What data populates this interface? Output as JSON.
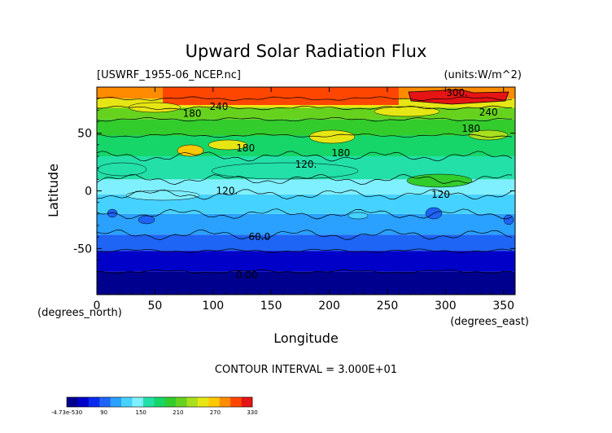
{
  "chart_data": {
    "type": "heatmap",
    "title": "Upward Solar Radiation Flux",
    "file_label": "[USWRF_1955-06_NCEP.nc]",
    "units_label": "(units:W/m^2)",
    "xlabel": "Longitude",
    "ylabel": "Latitude",
    "x_unit_label": "(degrees_east)",
    "y_unit_label": "(degrees_north)",
    "xlim": [
      0,
      360
    ],
    "ylim": [
      -90,
      90
    ],
    "x_ticks": [
      0,
      50,
      100,
      150,
      200,
      250,
      300,
      350
    ],
    "y_ticks": [
      -50,
      0,
      50
    ],
    "contour_interval_label": "CONTOUR INTERVAL = 3.000E+01",
    "colorbar": {
      "tick_labels": [
        "-4.73e-530",
        "90",
        "150",
        "210",
        "270",
        "330"
      ],
      "colors": [
        "#00008f",
        "#0000c8",
        "#0a2af0",
        "#1e64f5",
        "#2aa0ff",
        "#46d2ff",
        "#7ff0ff",
        "#22e0a8",
        "#16d66a",
        "#33cc2d",
        "#66d21e",
        "#a8e01e",
        "#e6e614",
        "#ffc800",
        "#ff8c00",
        "#ff4600",
        "#e61414"
      ]
    },
    "contour_labels": [
      {
        "text": "300.",
        "lon": 310,
        "lat": 85
      },
      {
        "text": "240",
        "lon": 105,
        "lat": 73
      },
      {
        "text": "180",
        "lon": 82,
        "lat": 67
      },
      {
        "text": "240",
        "lon": 337,
        "lat": 68
      },
      {
        "text": "180",
        "lon": 322,
        "lat": 54
      },
      {
        "text": "180",
        "lon": 128,
        "lat": 37
      },
      {
        "text": "180",
        "lon": 210,
        "lat": 33
      },
      {
        "text": "120.",
        "lon": 180,
        "lat": 23
      },
      {
        "text": "120.",
        "lon": 112,
        "lat": 0
      },
      {
        "text": "120",
        "lon": 296,
        "lat": -3
      },
      {
        "text": "60.0",
        "lon": 140,
        "lat": -40
      },
      {
        "text": "0.00",
        "lon": 129,
        "lat": -73
      }
    ],
    "latitude_bands": [
      {
        "from": -90,
        "to": -70,
        "value": 0
      },
      {
        "from": -70,
        "to": -52,
        "value": 30
      },
      {
        "from": -52,
        "to": -38,
        "value": 55
      },
      {
        "from": -38,
        "to": -20,
        "value": 75
      },
      {
        "from": -20,
        "to": -3,
        "value": 100
      },
      {
        "from": -3,
        "to": 10,
        "value": 125
      },
      {
        "from": 10,
        "to": 30,
        "value": 150
      },
      {
        "from": 30,
        "to": 48,
        "value": 170
      },
      {
        "from": 48,
        "to": 62,
        "value": 185
      },
      {
        "from": 62,
        "to": 72,
        "value": 215
      },
      {
        "from": 72,
        "to": 80,
        "value": 250
      },
      {
        "from": 80,
        "to": 90,
        "value": 290
      }
    ]
  }
}
